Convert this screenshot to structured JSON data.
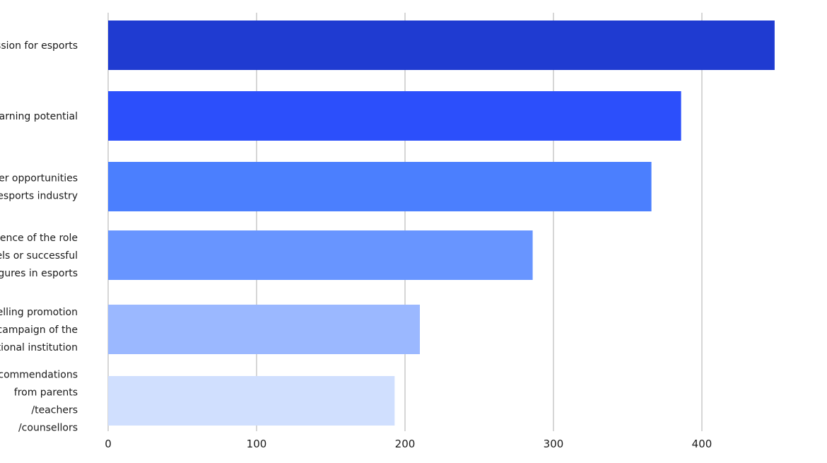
{
  "chart_data": {
    "type": "bar",
    "orientation": "horizontal",
    "categories": [
      [
        "Passion for esports"
      ],
      [
        "Earning potential"
      ],
      [
        "Career opportunities",
        "in the esports industry"
      ],
      [
        "Influence of the role",
        "models or successful",
        "figures in esports"
      ],
      [
        "Compelling promotion",
        "campaign of the",
        "educational institution"
      ],
      [
        "Recommendations",
        "from parents",
        "/teachers",
        "/counsellors"
      ]
    ],
    "values": [
      449,
      386,
      366,
      286,
      210,
      193
    ],
    "colors": [
      "#1f3bd1",
      "#2c4ffb",
      "#4b7ffe",
      "#6895ff",
      "#9bb8ff",
      "#d0dffe"
    ],
    "xlim": [
      0,
      450
    ],
    "xticks": [
      0,
      100,
      200,
      300,
      400
    ],
    "grid": true,
    "title": "",
    "xlabel": "",
    "ylabel": ""
  }
}
